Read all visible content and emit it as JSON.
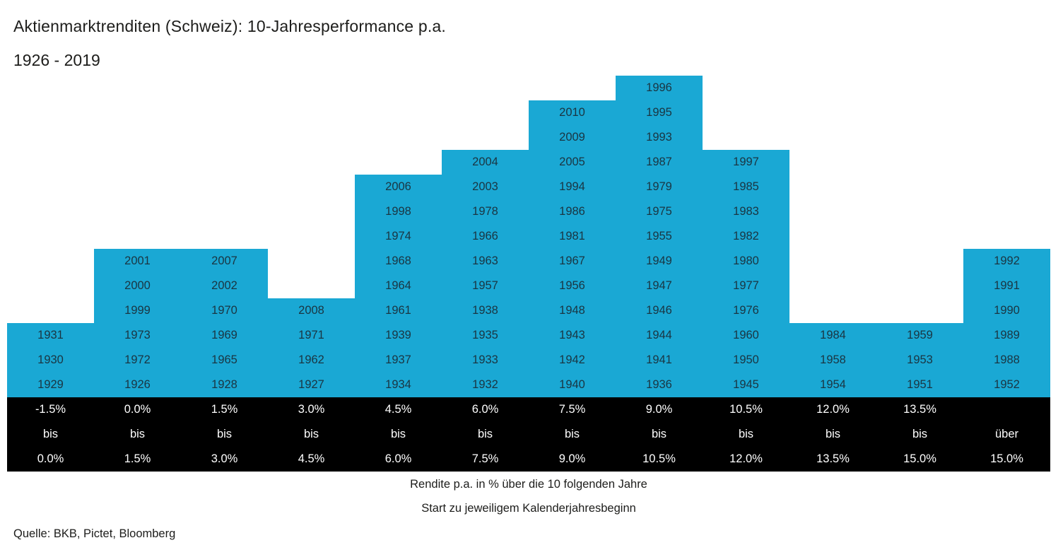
{
  "chart_data": {
    "type": "bar",
    "title": "Aktienmarktrenditen (Schweiz): 10-Jahresperformance p.a.",
    "subtitle": "1926 - 2019",
    "bar_color": "#1AA8D4",
    "year_text_color": "#1A3542",
    "axis_band_color": "#000000",
    "axis_text_color": "#FFFFFF",
    "categories": [
      "-1.5% bis 0.0%",
      "0.0% bis 1.5%",
      "1.5% bis 3.0%",
      "3.0% bis 4.5%",
      "4.5% bis 6.0%",
      "6.0% bis 7.5%",
      "7.5% bis 9.0%",
      "9.0% bis 10.5%",
      "10.5% bis 12.0%",
      "12.0% bis 13.5%",
      "13.5% bis 15.0%",
      "über 15.0%"
    ],
    "values": [
      3,
      6,
      6,
      4,
      9,
      10,
      12,
      13,
      10,
      3,
      3,
      6
    ],
    "columns": [
      {
        "range_top": "-1.5%",
        "range_mid": "bis",
        "range_bottom": "0.0%",
        "years_top_to_bottom": [
          "1931",
          "1930",
          "1929"
        ]
      },
      {
        "range_top": "0.0%",
        "range_mid": "bis",
        "range_bottom": "1.5%",
        "years_top_to_bottom": [
          "2001",
          "2000",
          "1999",
          "1973",
          "1972",
          "1926"
        ]
      },
      {
        "range_top": "1.5%",
        "range_mid": "bis",
        "range_bottom": "3.0%",
        "years_top_to_bottom": [
          "2007",
          "2002",
          "1970",
          "1969",
          "1965",
          "1928"
        ]
      },
      {
        "range_top": "3.0%",
        "range_mid": "bis",
        "range_bottom": "4.5%",
        "years_top_to_bottom": [
          "2008",
          "1971",
          "1962",
          "1927"
        ]
      },
      {
        "range_top": "4.5%",
        "range_mid": "bis",
        "range_bottom": "6.0%",
        "years_top_to_bottom": [
          "2006",
          "1998",
          "1974",
          "1968",
          "1964",
          "1961",
          "1939",
          "1937",
          "1934"
        ]
      },
      {
        "range_top": "6.0%",
        "range_mid": "bis",
        "range_bottom": "7.5%",
        "years_top_to_bottom": [
          "2004",
          "2003",
          "1978",
          "1966",
          "1963",
          "1957",
          "1938",
          "1935",
          "1933",
          "1932"
        ]
      },
      {
        "range_top": "7.5%",
        "range_mid": "bis",
        "range_bottom": "9.0%",
        "years_top_to_bottom": [
          "2010",
          "2009",
          "2005",
          "1994",
          "1986",
          "1981",
          "1967",
          "1956",
          "1948",
          "1943",
          "1942",
          "1940"
        ]
      },
      {
        "range_top": "9.0%",
        "range_mid": "bis",
        "range_bottom": "10.5%",
        "years_top_to_bottom": [
          "1996",
          "1995",
          "1993",
          "1987",
          "1979",
          "1975",
          "1955",
          "1949",
          "1947",
          "1946",
          "1944",
          "1941",
          "1936"
        ]
      },
      {
        "range_top": "10.5%",
        "range_mid": "bis",
        "range_bottom": "12.0%",
        "years_top_to_bottom": [
          "1997",
          "1985",
          "1983",
          "1982",
          "1980",
          "1977",
          "1976",
          "1960",
          "1950",
          "1945"
        ]
      },
      {
        "range_top": "12.0%",
        "range_mid": "bis",
        "range_bottom": "13.5%",
        "years_top_to_bottom": [
          "1984",
          "1958",
          "1954"
        ]
      },
      {
        "range_top": "13.5%",
        "range_mid": "bis",
        "range_bottom": "15.0%",
        "years_top_to_bottom": [
          "1959",
          "1953",
          "1951"
        ]
      },
      {
        "range_top": "",
        "range_mid": "über",
        "range_bottom": "15.0%",
        "years_top_to_bottom": [
          "1992",
          "1991",
          "1990",
          "1989",
          "1988",
          "1952"
        ]
      }
    ],
    "xlabel_lines": [
      "Rendite p.a. in % über die 10 folgenden Jahre",
      "Start zu jeweiligem Kalenderjahresbeginn"
    ],
    "ylabel": "",
    "legend": "none",
    "grid": "off"
  },
  "footer": {
    "note1": "Rendite p.a. in % über die 10 folgenden Jahre",
    "note2": "Start zu jeweiligem Kalenderjahresbeginn",
    "source": "Quelle: BKB, Pictet, Bloomberg"
  }
}
